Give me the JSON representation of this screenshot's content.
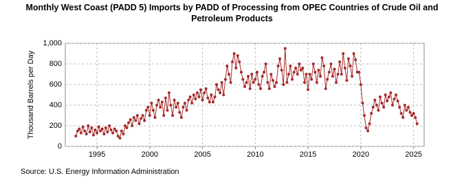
{
  "chart_data": {
    "type": "line",
    "title": "Monthly West Coast (PADD 5) Imports by PADD of Processing from OPEC Countries of Crude Oil and Petroleum Products",
    "y_label": "Thousand Barrels per Day",
    "source": "Source: U.S. Energy Information Administration",
    "xlim": [
      1992,
      2026
    ],
    "xticks": [
      1995,
      2000,
      2005,
      2010,
      2015,
      2020,
      2025
    ],
    "ylim": [
      0,
      1000
    ],
    "yticks": [
      0,
      200,
      400,
      600,
      800,
      {
        "value": 1000,
        "label": "1,000"
      }
    ],
    "grid": true,
    "series": [
      {
        "color": "#a52a2a",
        "x": [
          1993,
          1993.17,
          1993.33,
          1993.5,
          1993.67,
          1993.83,
          1994,
          1994.17,
          1994.33,
          1994.5,
          1994.67,
          1994.83,
          1995,
          1995.17,
          1995.33,
          1995.5,
          1995.67,
          1995.83,
          1996,
          1996.17,
          1996.33,
          1996.5,
          1996.67,
          1996.83,
          1997,
          1997.17,
          1997.33,
          1997.5,
          1997.67,
          1997.83,
          1998,
          1998.17,
          1998.33,
          1998.5,
          1998.67,
          1998.83,
          1999,
          1999.17,
          1999.33,
          1999.5,
          1999.67,
          1999.83,
          2000,
          2000.17,
          2000.33,
          2000.5,
          2000.67,
          2000.83,
          2001,
          2001.17,
          2001.33,
          2001.5,
          2001.67,
          2001.83,
          2002,
          2002.17,
          2002.33,
          2002.5,
          2002.67,
          2002.83,
          2003,
          2003.17,
          2003.33,
          2003.5,
          2003.67,
          2003.83,
          2004,
          2004.17,
          2004.33,
          2004.5,
          2004.67,
          2004.83,
          2005,
          2005.17,
          2005.33,
          2005.5,
          2005.67,
          2005.83,
          2006,
          2006.17,
          2006.33,
          2006.5,
          2006.67,
          2006.83,
          2007,
          2007.17,
          2007.33,
          2007.5,
          2007.67,
          2007.83,
          2008,
          2008.17,
          2008.33,
          2008.5,
          2008.67,
          2008.83,
          2009,
          2009.17,
          2009.33,
          2009.5,
          2009.67,
          2009.83,
          2010,
          2010.17,
          2010.33,
          2010.5,
          2010.67,
          2010.83,
          2011,
          2011.17,
          2011.33,
          2011.5,
          2011.67,
          2011.83,
          2012,
          2012.17,
          2012.33,
          2012.5,
          2012.67,
          2012.83,
          2013,
          2013.17,
          2013.33,
          2013.5,
          2013.67,
          2013.83,
          2014,
          2014.17,
          2014.33,
          2014.5,
          2014.67,
          2014.83,
          2015,
          2015.17,
          2015.33,
          2015.5,
          2015.67,
          2015.83,
          2016,
          2016.17,
          2016.33,
          2016.5,
          2016.67,
          2016.83,
          2017,
          2017.17,
          2017.33,
          2017.5,
          2017.67,
          2017.83,
          2018,
          2018.17,
          2018.33,
          2018.5,
          2018.67,
          2018.83,
          2019,
          2019.17,
          2019.33,
          2019.5,
          2019.67,
          2019.83,
          2020,
          2020.17,
          2020.33,
          2020.5,
          2020.67,
          2020.83,
          2021,
          2021.17,
          2021.33,
          2021.5,
          2021.67,
          2021.83,
          2022,
          2022.17,
          2022.33,
          2022.5,
          2022.67,
          2022.83,
          2023,
          2023.17,
          2023.33,
          2023.5,
          2023.67,
          2023.83,
          2024,
          2024.17,
          2024.33,
          2024.5,
          2024.67,
          2024.83,
          2025,
          2025.17,
          2025.33
        ],
        "values": [
          100,
          150,
          170,
          130,
          190,
          150,
          120,
          200,
          140,
          180,
          110,
          160,
          130,
          190,
          150,
          170,
          120,
          180,
          140,
          200,
          160,
          130,
          170,
          150,
          100,
          80,
          150,
          120,
          200,
          180,
          230,
          260,
          200,
          280,
          250,
          300,
          220,
          270,
          300,
          250,
          350,
          380,
          300,
          420,
          350,
          280,
          400,
          450,
          380,
          430,
          300,
          470,
          350,
          520,
          400,
          300,
          450,
          380,
          420,
          330,
          280,
          380,
          420,
          350,
          450,
          480,
          420,
          500,
          460,
          520,
          480,
          550,
          450,
          520,
          560,
          470,
          430,
          500,
          430,
          480,
          600,
          550,
          520,
          620,
          500,
          650,
          780,
          700,
          620,
          820,
          900,
          760,
          880,
          820,
          720,
          650,
          580,
          620,
          680,
          560,
          700,
          620,
          650,
          720,
          600,
          560,
          680,
          720,
          800,
          620,
          560,
          700,
          640,
          580,
          620,
          780,
          850,
          740,
          600,
          950,
          620,
          700,
          780,
          650,
          720,
          760,
          700,
          800,
          740,
          760,
          620,
          700,
          550,
          700,
          650,
          800,
          720,
          620,
          740,
          680,
          860,
          780,
          560,
          650,
          720,
          800,
          680,
          750,
          620,
          700,
          820,
          700,
          900,
          760,
          640,
          850,
          780,
          680,
          900,
          840,
          720,
          720,
          600,
          420,
          300,
          180,
          150,
          220,
          320,
          380,
          450,
          400,
          350,
          480,
          420,
          380,
          500,
          440,
          480,
          520,
          400,
          460,
          500,
          440,
          380,
          320,
          280,
          400,
          350,
          380,
          330,
          300,
          320,
          280,
          220
        ]
      }
    ]
  }
}
